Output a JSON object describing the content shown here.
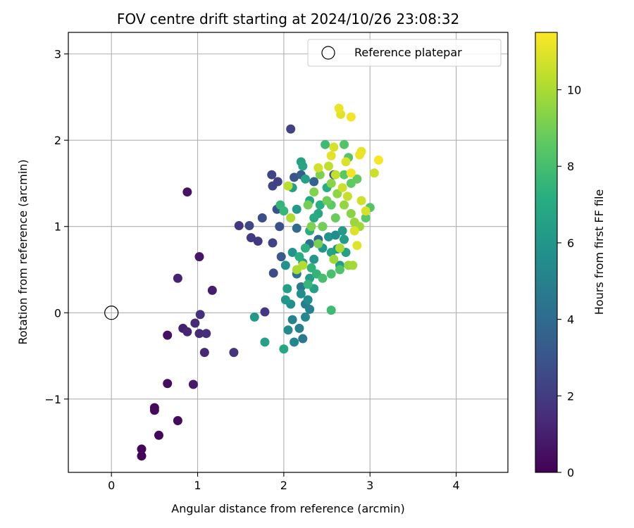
{
  "chart_data": {
    "type": "scatter",
    "title": "FOV centre drift starting at 2024/10/26 23:08:32",
    "xlabel": "Angular distance from reference (arcmin)",
    "ylabel": "Rotation from reference (arcmin)",
    "xlim": [
      -0.5,
      4.6
    ],
    "ylim": [
      -1.85,
      3.25
    ],
    "xticks": [
      0,
      1,
      2,
      3,
      4
    ],
    "yticks": [
      -1,
      0,
      1,
      2,
      3
    ],
    "grid": true,
    "legend": {
      "placement": "top-right",
      "entries": [
        "Reference platepar"
      ]
    },
    "reference_point": {
      "label": "Reference platepar",
      "x": 0,
      "y": 0
    },
    "colorbar": {
      "label": "Hours from first FF file",
      "colormap": "viridis",
      "range": [
        0,
        11.5
      ],
      "ticks": [
        0,
        2,
        4,
        6,
        8,
        10
      ]
    },
    "points": [
      {
        "x": 0.35,
        "y": -1.66,
        "c": 0.1
      },
      {
        "x": 0.35,
        "y": -1.58,
        "c": 0.15
      },
      {
        "x": 0.55,
        "y": -1.42,
        "c": 0.2
      },
      {
        "x": 0.5,
        "y": -1.1,
        "c": 0.25
      },
      {
        "x": 0.5,
        "y": -1.13,
        "c": 0.3
      },
      {
        "x": 0.77,
        "y": -1.25,
        "c": 0.35
      },
      {
        "x": 0.65,
        "y": -0.82,
        "c": 0.4
      },
      {
        "x": 0.65,
        "y": -0.26,
        "c": 0.5
      },
      {
        "x": 0.95,
        "y": -0.83,
        "c": 0.8
      },
      {
        "x": 0.88,
        "y": 1.4,
        "c": 0.6
      },
      {
        "x": 1.02,
        "y": 0.65,
        "c": 0.7
      },
      {
        "x": 0.77,
        "y": 0.4,
        "c": 1.1
      },
      {
        "x": 1.17,
        "y": 0.26,
        "c": 0.9
      },
      {
        "x": 0.83,
        "y": -0.18,
        "c": 1.0
      },
      {
        "x": 0.88,
        "y": -0.22,
        "c": 1.2
      },
      {
        "x": 0.97,
        "y": -0.12,
        "c": 1.3
      },
      {
        "x": 1.02,
        "y": -0.24,
        "c": 1.4
      },
      {
        "x": 1.1,
        "y": -0.24,
        "c": 1.5
      },
      {
        "x": 1.08,
        "y": -0.46,
        "c": 1.3
      },
      {
        "x": 1.03,
        "y": -0.02,
        "c": 1.6
      },
      {
        "x": 1.42,
        "y": -0.46,
        "c": 1.7
      },
      {
        "x": 1.78,
        "y": 0.01,
        "c": 1.8
      },
      {
        "x": 1.48,
        "y": 1.01,
        "c": 1.8
      },
      {
        "x": 1.6,
        "y": 1.01,
        "c": 2.5
      },
      {
        "x": 1.62,
        "y": 0.87,
        "c": 2.0
      },
      {
        "x": 1.7,
        "y": 0.83,
        "c": 1.9
      },
      {
        "x": 1.75,
        "y": 1.1,
        "c": 2.7
      },
      {
        "x": 1.86,
        "y": 1.6,
        "c": 2.4
      },
      {
        "x": 1.87,
        "y": 1.47,
        "c": 2.3
      },
      {
        "x": 1.93,
        "y": 1.52,
        "c": 2.2
      },
      {
        "x": 1.87,
        "y": 0.81,
        "c": 2.3
      },
      {
        "x": 1.88,
        "y": 0.46,
        "c": 2.6
      },
      {
        "x": 1.95,
        "y": 1.0,
        "c": 2.8
      },
      {
        "x": 1.92,
        "y": 1.2,
        "c": 2.9
      },
      {
        "x": 2.08,
        "y": 2.13,
        "c": 2.2
      },
      {
        "x": 1.97,
        "y": 0.65,
        "c": 3.2
      },
      {
        "x": 2.12,
        "y": 1.57,
        "c": 3.0
      },
      {
        "x": 2.2,
        "y": 1.6,
        "c": 3.4
      },
      {
        "x": 2.35,
        "y": 1.52,
        "c": 3.6
      },
      {
        "x": 2.58,
        "y": 1.6,
        "c": 3.3
      },
      {
        "x": 2.4,
        "y": 0.85,
        "c": 3.8
      },
      {
        "x": 2.15,
        "y": 0.98,
        "c": 4.0
      },
      {
        "x": 2.3,
        "y": 0.8,
        "c": 4.2
      },
      {
        "x": 2.15,
        "y": 0.45,
        "c": 4.4
      },
      {
        "x": 2.2,
        "y": 0.3,
        "c": 4.6
      },
      {
        "x": 2.25,
        "y": 0.1,
        "c": 4.8
      },
      {
        "x": 2.3,
        "y": 0.04,
        "c": 5.0
      },
      {
        "x": 2.1,
        "y": -0.08,
        "c": 5.1
      },
      {
        "x": 2.18,
        "y": -0.18,
        "c": 5.0
      },
      {
        "x": 2.22,
        "y": -0.3,
        "c": 4.7
      },
      {
        "x": 2.12,
        "y": -0.34,
        "c": 5.2
      },
      {
        "x": 2.05,
        "y": -0.2,
        "c": 5.4
      },
      {
        "x": 2.25,
        "y": -0.05,
        "c": 5.3
      },
      {
        "x": 2.28,
        "y": 0.15,
        "c": 5.5
      },
      {
        "x": 2.2,
        "y": 0.22,
        "c": 5.6
      },
      {
        "x": 2.08,
        "y": 0.1,
        "c": 5.7
      },
      {
        "x": 2.02,
        "y": 0.55,
        "c": 5.8
      },
      {
        "x": 2.1,
        "y": 0.7,
        "c": 5.9
      },
      {
        "x": 2.22,
        "y": 0.58,
        "c": 6.0
      },
      {
        "x": 2.35,
        "y": 0.62,
        "c": 6.1
      },
      {
        "x": 2.45,
        "y": 0.75,
        "c": 6.0
      },
      {
        "x": 2.52,
        "y": 0.88,
        "c": 5.9
      },
      {
        "x": 2.6,
        "y": 0.9,
        "c": 5.6
      },
      {
        "x": 2.62,
        "y": 0.74,
        "c": 5.8
      },
      {
        "x": 2.68,
        "y": 0.95,
        "c": 6.2
      },
      {
        "x": 2.7,
        "y": 0.85,
        "c": 6.3
      },
      {
        "x": 2.72,
        "y": 0.7,
        "c": 6.5
      },
      {
        "x": 2.65,
        "y": 0.55,
        "c": 6.4
      },
      {
        "x": 2.55,
        "y": 0.7,
        "c": 6.6
      },
      {
        "x": 2.3,
        "y": 0.4,
        "c": 6.3
      },
      {
        "x": 2.35,
        "y": 0.28,
        "c": 6.5
      },
      {
        "x": 2.04,
        "y": 0.28,
        "c": 6.4
      },
      {
        "x": 2.0,
        "y": -0.42,
        "c": 6.8
      },
      {
        "x": 1.78,
        "y": -0.34,
        "c": 6.5
      },
      {
        "x": 1.66,
        "y": -0.05,
        "c": 6.2
      },
      {
        "x": 2.02,
        "y": 0.15,
        "c": 6.1
      },
      {
        "x": 2.15,
        "y": 1.2,
        "c": 6.2
      },
      {
        "x": 2.1,
        "y": 1.45,
        "c": 6.4
      },
      {
        "x": 2.2,
        "y": 1.75,
        "c": 6.5
      },
      {
        "x": 2.22,
        "y": 1.7,
        "c": 6.7
      },
      {
        "x": 2.25,
        "y": 1.55,
        "c": 6.6
      },
      {
        "x": 2.3,
        "y": 1.3,
        "c": 6.8
      },
      {
        "x": 2.4,
        "y": 1.15,
        "c": 6.9
      },
      {
        "x": 2.45,
        "y": 1.0,
        "c": 7.0
      },
      {
        "x": 2.5,
        "y": 1.45,
        "c": 7.1
      },
      {
        "x": 2.42,
        "y": 1.25,
        "c": 7.2
      },
      {
        "x": 2.35,
        "y": 1.1,
        "c": 7.0
      },
      {
        "x": 2.3,
        "y": 0.95,
        "c": 7.1
      },
      {
        "x": 2.25,
        "y": 0.75,
        "c": 7.3
      },
      {
        "x": 2.18,
        "y": 0.65,
        "c": 7.2
      },
      {
        "x": 2.32,
        "y": 0.52,
        "c": 7.4
      },
      {
        "x": 2.38,
        "y": 0.45,
        "c": 7.5
      },
      {
        "x": 2.28,
        "y": 0.33,
        "c": 7.6
      },
      {
        "x": 1.96,
        "y": 1.25,
        "c": 7.5
      },
      {
        "x": 2.0,
        "y": 1.18,
        "c": 7.6
      },
      {
        "x": 2.48,
        "y": 1.95,
        "c": 7.8
      },
      {
        "x": 2.55,
        "y": 0.03,
        "c": 7.8
      },
      {
        "x": 2.45,
        "y": 0.4,
        "c": 8.0
      },
      {
        "x": 2.55,
        "y": 0.45,
        "c": 8.1
      },
      {
        "x": 2.65,
        "y": 0.5,
        "c": 8.2
      },
      {
        "x": 2.7,
        "y": 1.95,
        "c": 8.3
      },
      {
        "x": 2.75,
        "y": 1.8,
        "c": 8.4
      },
      {
        "x": 2.7,
        "y": 1.6,
        "c": 8.5
      },
      {
        "x": 2.78,
        "y": 1.5,
        "c": 8.6
      },
      {
        "x": 2.85,
        "y": 1.55,
        "c": 8.7
      },
      {
        "x": 2.95,
        "y": 1.1,
        "c": 8.5
      },
      {
        "x": 3.0,
        "y": 1.22,
        "c": 8.3
      },
      {
        "x": 2.55,
        "y": 1.25,
        "c": 8.6
      },
      {
        "x": 2.6,
        "y": 1.1,
        "c": 8.8
      },
      {
        "x": 2.5,
        "y": 1.3,
        "c": 8.9
      },
      {
        "x": 2.45,
        "y": 1.0,
        "c": 9.0
      },
      {
        "x": 2.4,
        "y": 0.8,
        "c": 9.1
      },
      {
        "x": 2.32,
        "y": 1.0,
        "c": 9.2
      },
      {
        "x": 2.28,
        "y": 1.25,
        "c": 9.0
      },
      {
        "x": 2.35,
        "y": 1.4,
        "c": 9.3
      },
      {
        "x": 2.42,
        "y": 1.6,
        "c": 9.2
      },
      {
        "x": 2.55,
        "y": 1.5,
        "c": 9.4
      },
      {
        "x": 2.62,
        "y": 1.38,
        "c": 9.5
      },
      {
        "x": 2.7,
        "y": 1.25,
        "c": 9.6
      },
      {
        "x": 2.78,
        "y": 1.15,
        "c": 9.4
      },
      {
        "x": 2.82,
        "y": 1.05,
        "c": 9.7
      },
      {
        "x": 2.88,
        "y": 1.0,
        "c": 9.8
      },
      {
        "x": 2.75,
        "y": 0.55,
        "c": 9.6
      },
      {
        "x": 2.8,
        "y": 0.55,
        "c": 9.9
      },
      {
        "x": 2.58,
        "y": 0.62,
        "c": 9.8
      },
      {
        "x": 2.65,
        "y": 0.75,
        "c": 10.0
      },
      {
        "x": 2.22,
        "y": 0.55,
        "c": 10.2
      },
      {
        "x": 2.15,
        "y": 0.5,
        "c": 10.0
      },
      {
        "x": 2.08,
        "y": 1.1,
        "c": 10.1
      },
      {
        "x": 2.05,
        "y": 1.47,
        "c": 10.3
      },
      {
        "x": 2.52,
        "y": 1.7,
        "c": 10.4
      },
      {
        "x": 2.6,
        "y": 1.6,
        "c": 10.5
      },
      {
        "x": 2.68,
        "y": 1.45,
        "c": 10.6
      },
      {
        "x": 2.74,
        "y": 1.35,
        "c": 10.5
      },
      {
        "x": 2.9,
        "y": 1.3,
        "c": 10.7
      },
      {
        "x": 2.95,
        "y": 1.18,
        "c": 10.8
      },
      {
        "x": 2.82,
        "y": 0.95,
        "c": 10.9
      },
      {
        "x": 2.85,
        "y": 0.78,
        "c": 11.0
      },
      {
        "x": 2.58,
        "y": 1.92,
        "c": 10.8
      },
      {
        "x": 2.66,
        "y": 2.3,
        "c": 11.0
      },
      {
        "x": 2.64,
        "y": 2.37,
        "c": 11.2
      },
      {
        "x": 2.78,
        "y": 2.27,
        "c": 11.3
      },
      {
        "x": 2.9,
        "y": 1.87,
        "c": 11.1
      },
      {
        "x": 2.88,
        "y": 1.83,
        "c": 11.2
      },
      {
        "x": 3.1,
        "y": 1.77,
        "c": 11.4
      },
      {
        "x": 3.05,
        "y": 1.62,
        "c": 10.6
      },
      {
        "x": 2.78,
        "y": 1.62,
        "c": 11.3
      },
      {
        "x": 2.55,
        "y": 1.82,
        "c": 11.0
      },
      {
        "x": 2.72,
        "y": 1.75,
        "c": 10.9
      },
      {
        "x": 2.4,
        "y": 1.68,
        "c": 10.7
      }
    ]
  }
}
